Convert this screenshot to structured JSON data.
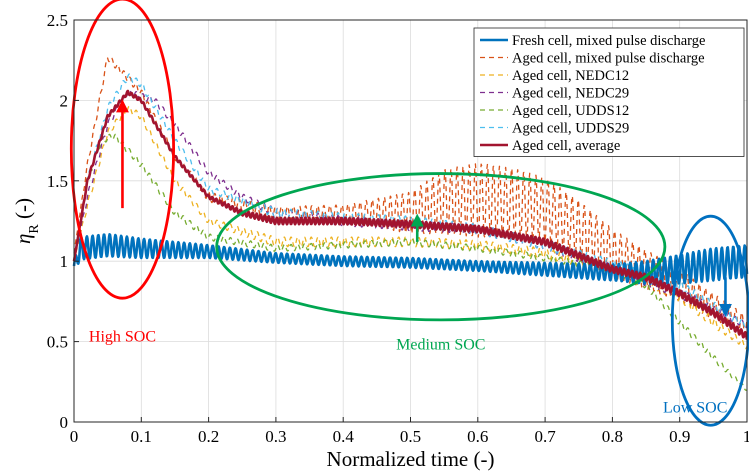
{
  "chart_data": {
    "type": "line",
    "xlabel": "Normalized time (-)",
    "ylabel_main": "η",
    "ylabel_sub": "R",
    "ylabel_unit": " (-)",
    "xlim": [
      0,
      1
    ],
    "ylim": [
      0,
      2.5
    ],
    "xticks": [
      "0",
      "0.1",
      "0.2",
      "0.3",
      "0.4",
      "0.5",
      "0.6",
      "0.7",
      "0.8",
      "0.9",
      "1"
    ],
    "yticks": [
      "0",
      "0.5",
      "1",
      "1.5",
      "2",
      "2.5"
    ],
    "grid": true,
    "legend_position": "top-right",
    "series": [
      {
        "name": "Fresh cell, mixed pulse discharge",
        "color": "#0072BD",
        "dash": "solid",
        "width": 2.6,
        "base_x": [
          0,
          0.01,
          0.05,
          0.1,
          0.2,
          0.3,
          0.4,
          0.5,
          0.6,
          0.7,
          0.8,
          0.85,
          0.9,
          0.95,
          1.0
        ],
        "base_y": [
          0.97,
          1.08,
          1.1,
          1.08,
          1.06,
          1.02,
          1.0,
          0.99,
          0.97,
          0.95,
          0.93,
          0.93,
          0.95,
          0.98,
          1.0
        ],
        "osc_amp": [
          0.03,
          0.07,
          0.07,
          0.06,
          0.04,
          0.03,
          0.03,
          0.03,
          0.03,
          0.04,
          0.05,
          0.07,
          0.09,
          0.1,
          0.1
        ],
        "osc_period": 0.0085
      },
      {
        "name": "Aged cell, mixed pulse discharge",
        "color": "#D95319",
        "dash": "5,4",
        "width": 1.3,
        "base_x": [
          0,
          0.02,
          0.05,
          0.1,
          0.15,
          0.2,
          0.3,
          0.4,
          0.5,
          0.55,
          0.6,
          0.65,
          0.7,
          0.75,
          0.8,
          0.85,
          0.9,
          0.95,
          1.0
        ],
        "base_y": [
          1.05,
          1.6,
          2.27,
          2.05,
          1.65,
          1.4,
          1.3,
          1.3,
          1.3,
          1.37,
          1.38,
          1.36,
          1.32,
          1.2,
          1.05,
          0.95,
          0.85,
          0.72,
          0.6
        ],
        "osc_amp": [
          0,
          0.02,
          0.02,
          0.02,
          0.02,
          0.03,
          0.04,
          0.05,
          0.13,
          0.2,
          0.23,
          0.22,
          0.2,
          0.18,
          0.15,
          0.12,
          0.1,
          0.08,
          0.06
        ],
        "osc_period": 0.009
      },
      {
        "name": "Aged cell, NEDC12",
        "color": "#EDB120",
        "dash": "5,4",
        "width": 1.3,
        "base_x": [
          0,
          0.02,
          0.05,
          0.08,
          0.1,
          0.15,
          0.2,
          0.3,
          0.4,
          0.5,
          0.6,
          0.7,
          0.8,
          0.85,
          0.9,
          0.95,
          1.0
        ],
        "base_y": [
          1.0,
          1.35,
          1.8,
          1.95,
          1.9,
          1.5,
          1.25,
          1.12,
          1.12,
          1.12,
          1.1,
          1.05,
          0.95,
          0.88,
          0.78,
          0.62,
          0.47
        ],
        "osc_amp": [
          0,
          0.02,
          0.02,
          0.02,
          0.02,
          0.02,
          0.02,
          0.03,
          0.03,
          0.03,
          0.03,
          0.03,
          0.03,
          0.03,
          0.03,
          0.03,
          0.02
        ],
        "osc_period": 0.01
      },
      {
        "name": "Aged cell, NEDC29",
        "color": "#7E2F8E",
        "dash": "5,4",
        "width": 1.3,
        "base_x": [
          0,
          0.02,
          0.05,
          0.08,
          0.12,
          0.15,
          0.2,
          0.25,
          0.3,
          0.4,
          0.5,
          0.6,
          0.7,
          0.8,
          0.9,
          1.0
        ],
        "base_y": [
          1.0,
          1.4,
          1.85,
          2.05,
          2.0,
          1.85,
          1.55,
          1.4,
          1.3,
          1.25,
          1.22,
          1.2,
          1.1,
          0.95,
          0.8,
          0.6
        ],
        "osc_amp": [
          0,
          0.02,
          0.02,
          0.02,
          0.02,
          0.02,
          0.02,
          0.02,
          0.03,
          0.03,
          0.03,
          0.03,
          0.03,
          0.03,
          0.03,
          0.02
        ],
        "osc_period": 0.01
      },
      {
        "name": "Aged cell, UDDS12",
        "color": "#77AC30",
        "dash": "5,4",
        "width": 1.3,
        "base_x": [
          0,
          0.02,
          0.04,
          0.06,
          0.1,
          0.15,
          0.2,
          0.3,
          0.4,
          0.5,
          0.6,
          0.7,
          0.8,
          0.85,
          0.9,
          0.95,
          1.0
        ],
        "base_y": [
          1.0,
          1.5,
          1.75,
          1.78,
          1.6,
          1.3,
          1.15,
          1.08,
          1.1,
          1.12,
          1.08,
          1.02,
          0.95,
          0.85,
          0.62,
          0.4,
          0.2
        ],
        "osc_amp": [
          0,
          0.02,
          0.02,
          0.02,
          0.02,
          0.02,
          0.02,
          0.02,
          0.02,
          0.02,
          0.02,
          0.02,
          0.02,
          0.02,
          0.02,
          0.02,
          0.01
        ],
        "osc_period": 0.01
      },
      {
        "name": "Aged cell, UDDS29",
        "color": "#4DBEEE",
        "dash": "5,4",
        "width": 1.3,
        "base_x": [
          0,
          0.02,
          0.05,
          0.08,
          0.1,
          0.15,
          0.2,
          0.3,
          0.4,
          0.5,
          0.6,
          0.7,
          0.8,
          0.85,
          0.9,
          0.95,
          1.0
        ],
        "base_y": [
          1.0,
          1.5,
          1.95,
          2.15,
          2.1,
          1.75,
          1.45,
          1.3,
          1.27,
          1.25,
          1.2,
          1.1,
          0.98,
          0.92,
          0.85,
          0.72,
          0.6
        ],
        "osc_amp": [
          0,
          0.02,
          0.02,
          0.02,
          0.02,
          0.02,
          0.02,
          0.03,
          0.03,
          0.03,
          0.03,
          0.03,
          0.03,
          0.03,
          0.03,
          0.03,
          0.02
        ],
        "osc_period": 0.01
      },
      {
        "name": "Aged cell, average",
        "color": "#A2142F",
        "dash": "solid",
        "width": 2.6,
        "base_x": [
          0,
          0.02,
          0.05,
          0.08,
          0.1,
          0.15,
          0.2,
          0.25,
          0.3,
          0.4,
          0.5,
          0.6,
          0.7,
          0.8,
          0.85,
          0.9,
          0.95,
          1.0
        ],
        "base_y": [
          1.0,
          1.5,
          1.9,
          2.05,
          2.0,
          1.65,
          1.4,
          1.3,
          1.25,
          1.25,
          1.23,
          1.2,
          1.12,
          0.95,
          0.9,
          0.8,
          0.68,
          0.53
        ],
        "osc_amp": [
          0,
          0.01,
          0.01,
          0.01,
          0.01,
          0.01,
          0.01,
          0.015,
          0.02,
          0.02,
          0.02,
          0.02,
          0.02,
          0.02,
          0.02,
          0.02,
          0.02,
          0.02
        ],
        "osc_period": 0.006
      }
    ],
    "annotations": [
      {
        "label": "High SOC",
        "color": "#FF0000",
        "ellipse": {
          "cx": 0.072,
          "cy": 1.7,
          "rx": 0.076,
          "ry": 0.93
        },
        "arrow": {
          "x": 0.072,
          "y_from": 1.33,
          "y_to": 1.99
        },
        "text_pos": {
          "x": 0.072,
          "y": 0.5
        }
      },
      {
        "label": "Medium SOC",
        "color": "#00A651",
        "ellipse": {
          "cx": 0.545,
          "cy": 1.09,
          "rx": 0.333,
          "ry": 0.455
        },
        "arrow": {
          "x": 0.51,
          "y_from": 1.12,
          "y_to": 1.28
        },
        "text_pos": {
          "x": 0.545,
          "y": 0.45
        }
      },
      {
        "label": "Low SOC",
        "color": "#0070C0",
        "ellipse": {
          "cx": 0.946,
          "cy": 0.63,
          "rx": 0.057,
          "ry": 0.65
        },
        "arrow": {
          "x": 0.968,
          "y_from": 0.9,
          "y_to": 0.67
        },
        "text_pos": {
          "x": 0.923,
          "y": 0.06
        }
      }
    ]
  }
}
